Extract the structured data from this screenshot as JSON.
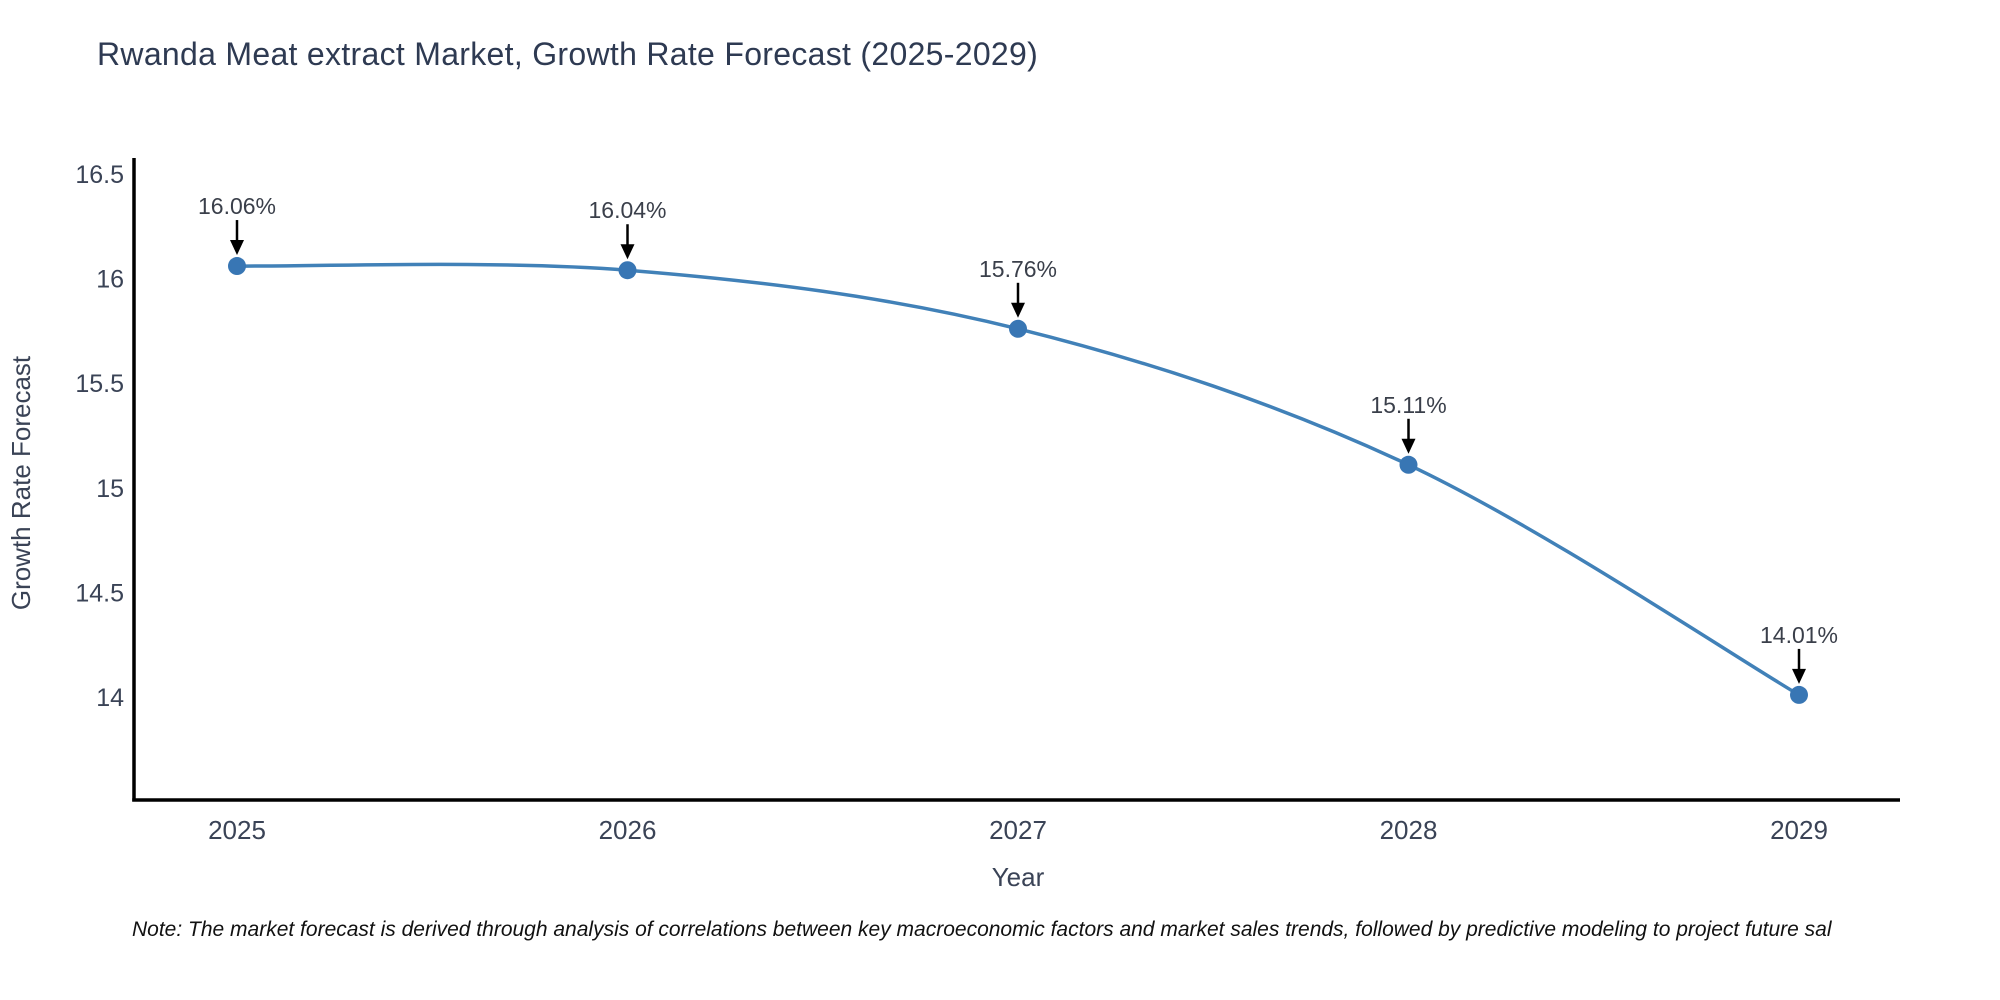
{
  "title": "Rwanda Meat extract Market, Growth Rate Forecast (2025-2029)",
  "note": "Note: The market forecast is derived through analysis of correlations between key macroeconomic factors and market sales trends, followed by predictive modeling to project future sal",
  "chart_data": {
    "type": "line",
    "line_shape": "spline",
    "x": [
      "2025",
      "2026",
      "2027",
      "2028",
      "2029"
    ],
    "series": [
      {
        "name": "Growth Rate Forecast",
        "values": [
          16.06,
          16.04,
          15.76,
          15.11,
          14.01
        ]
      }
    ],
    "point_labels": [
      "16.06%",
      "16.04%",
      "15.76%",
      "15.11%",
      "14.01%"
    ],
    "xlabel": "Year",
    "ylabel": "Growth Rate Forecast",
    "ytick_labels": [
      "16.5",
      "16",
      "15.5",
      "15",
      "14.5",
      "14"
    ],
    "ytick_values": [
      16.5,
      16.0,
      15.5,
      15.0,
      14.5,
      14.0
    ],
    "ylim": [
      13.5,
      16.57
    ],
    "grid": false,
    "legend": false,
    "annotation_arrows": true,
    "colors": {
      "line": "#4181b8",
      "marker": "#3876b4",
      "arrow": "#000000",
      "axis_line": "#000000",
      "title_text": "#2e3a52",
      "tick_text": "#3a4356",
      "axis_title_text": "#3a4356",
      "annotation_text": "#3a3f4a",
      "note_text": "#111111",
      "background": "#ffffff"
    }
  }
}
